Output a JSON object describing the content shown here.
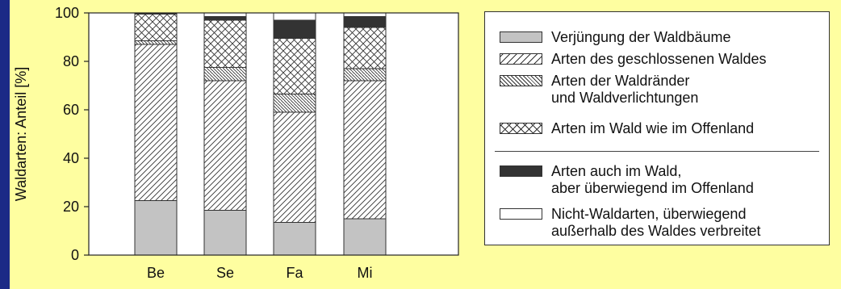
{
  "chart_data": {
    "type": "bar",
    "stacked": true,
    "ylabel": "Waldarten: Anteil [%]",
    "xlabel": "",
    "ylim": [
      0,
      100
    ],
    "yticks": [
      0,
      20,
      40,
      60,
      80,
      100
    ],
    "categories": [
      "Be",
      "Se",
      "Fa",
      "Mi"
    ],
    "series": [
      {
        "name": "Verjüngung der Waldbäume",
        "fill": "solid-gray",
        "color": "#c3c3c3",
        "values": [
          22.5,
          18.5,
          13.5,
          15
        ]
      },
      {
        "name": "Arten des geschlossenen Waldes",
        "fill": "diagonal-hatch",
        "values": [
          64.5,
          53.5,
          45.5,
          57
        ]
      },
      {
        "name": "Arten der Waldränder und Waldverlichtungen",
        "fill": "reverse-diagonal-hatch",
        "values": [
          1.5,
          5.5,
          7.5,
          5
        ]
      },
      {
        "name": "Arten im Wald wie im Offenland",
        "fill": "cross-hatch",
        "values": [
          11,
          19.5,
          23,
          17
        ]
      },
      {
        "name": "Arten auch im Wald, aber überwiegend im Offenland",
        "fill": "solid-dark",
        "color": "#333333",
        "values": [
          0.5,
          1.5,
          7.5,
          4.5
        ]
      },
      {
        "name": "Nicht-Waldarten, überwiegend außerhalb des Waldes verbreitet",
        "fill": "white",
        "color": "#ffffff",
        "values": [
          0,
          1.5,
          3,
          1.5
        ]
      }
    ],
    "grid": false,
    "legend_position": "right"
  },
  "legend": {
    "items": [
      {
        "lines": [
          "Verjüngung der Waldbäume"
        ]
      },
      {
        "lines": [
          "Arten des geschlossenen Waldes"
        ]
      },
      {
        "lines": [
          "Arten der Waldränder",
          "und Waldverlichtungen"
        ]
      },
      {
        "lines": [
          "Arten im Wald wie im Offenland"
        ]
      },
      {
        "lines": [
          "Arten auch im Wald,",
          "aber überwiegend im Offenland"
        ]
      },
      {
        "lines": [
          "Nicht-Waldarten, überwiegend",
          "außerhalb des Waldes verbreitet"
        ]
      }
    ]
  },
  "colors": {
    "background": "#fefea0",
    "side_bar": "#1b2a86",
    "plot_area": "#ffffff"
  }
}
